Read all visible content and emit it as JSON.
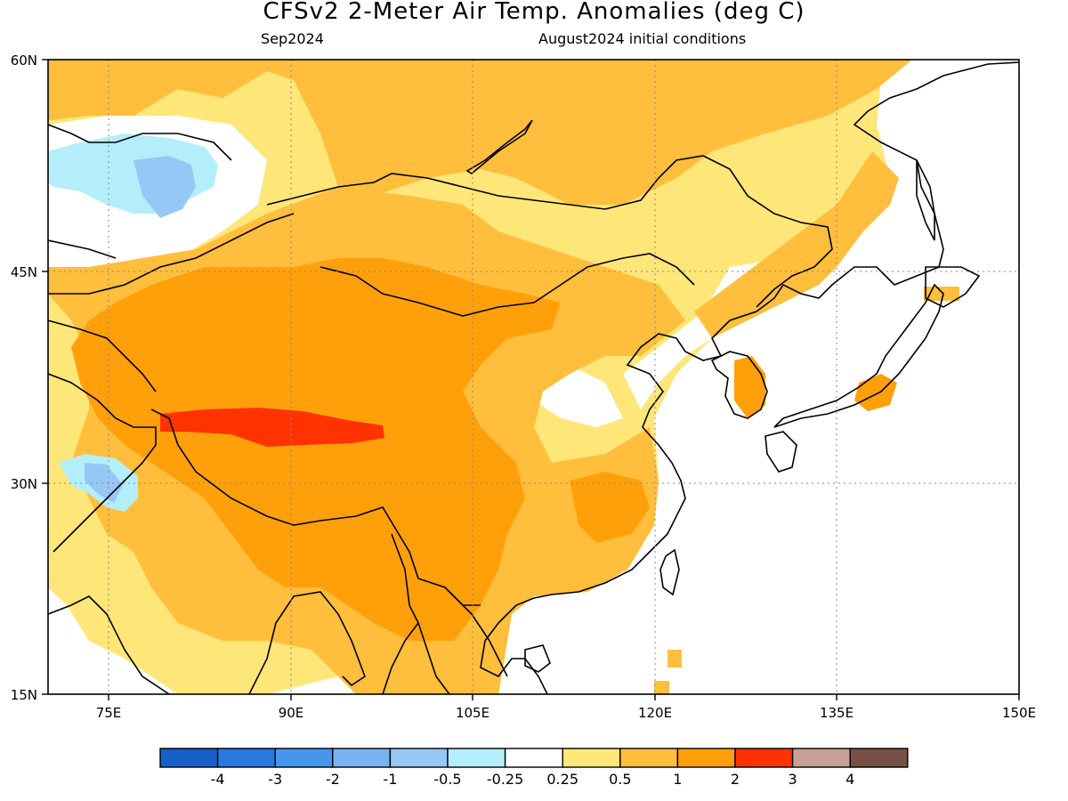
{
  "title": "CFSv2 2-Meter Air Temp. Anomalies (deg C)",
  "subtitle_left": "Sep2024",
  "subtitle_right": "August2024 initial conditions",
  "axes": {
    "lon_ticks": [
      "75E",
      "90E",
      "105E",
      "120E",
      "135E",
      "150E"
    ],
    "lat_ticks": [
      "60N",
      "45N",
      "30N",
      "15N"
    ],
    "lon_range": [
      70,
      150
    ],
    "lat_range": [
      15,
      60
    ]
  },
  "colorbar": {
    "colors": [
      "#1560c8",
      "#2878e0",
      "#4696ee",
      "#78b4f2",
      "#96c8f6",
      "#b4eefa",
      "#ffffff",
      "#ffe678",
      "#ffbe3c",
      "#ffa00a",
      "#ff3200",
      "#c8a096",
      "#785046"
    ],
    "labels": [
      "-4",
      "-3",
      "-2",
      "-1",
      "-0.5",
      "-0.25",
      "0.25",
      "0.5",
      "1",
      "2",
      "3",
      "4"
    ]
  },
  "legend_colors": {
    "ocean": "#ffffff",
    "gt_025": "#ffe678",
    "gt_05": "#ffbe3c",
    "gt_1": "#ffa00a",
    "gt_2": "#ff3200",
    "lt_025": "#b4eefa",
    "lt_05": "#96c8f6",
    "lt_1": "#78b4f2"
  }
}
